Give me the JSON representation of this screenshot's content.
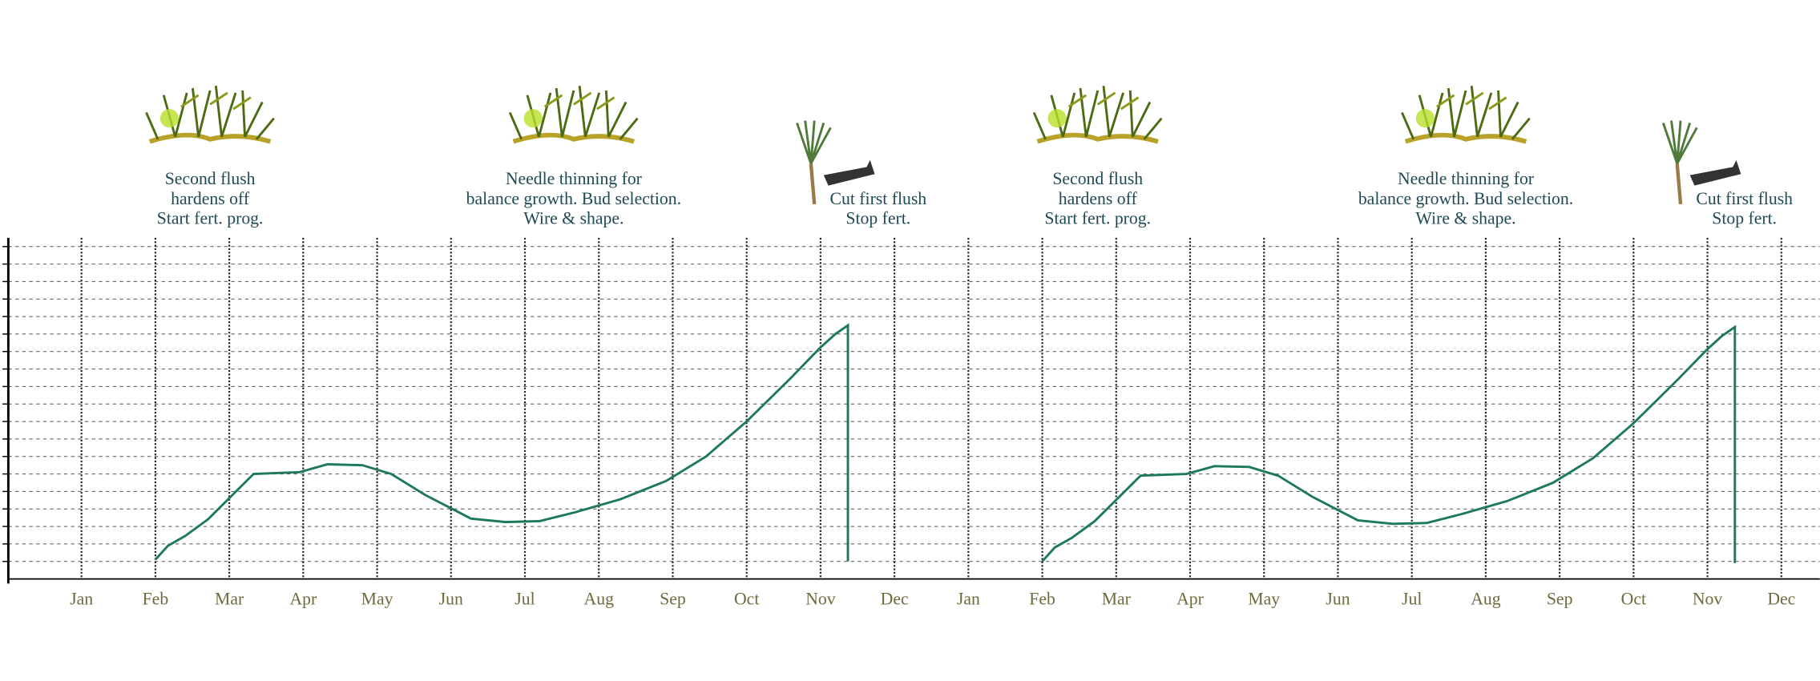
{
  "chart_data": {
    "type": "line",
    "x": [
      1,
      1.17,
      1.4,
      1.71,
      2.02,
      2.33,
      2.95,
      3.33,
      3.8,
      4.19,
      4.65,
      5.27,
      5.74,
      6.2,
      6.67,
      7.29,
      7.91,
      8.45,
      9.0,
      9.6,
      9.99,
      10.2,
      10.37,
      10.37,
      null,
      13,
      13.17,
      13.4,
      13.71,
      14.02,
      14.33,
      14.95,
      15.33,
      15.8,
      16.19,
      16.65,
      17.27,
      17.74,
      18.2,
      18.67,
      19.29,
      19.91,
      20.45,
      21.0,
      21.6,
      21.99,
      22.2,
      22.37,
      22.37
    ],
    "values": [
      1.1,
      1.9,
      2.45,
      3.4,
      4.7,
      6.0,
      6.1,
      6.55,
      6.5,
      6.0,
      4.8,
      3.45,
      3.25,
      3.3,
      3.8,
      4.55,
      5.6,
      7.0,
      9.0,
      11.5,
      13.2,
      14.0,
      14.5,
      1.0,
      null,
      1.0,
      1.8,
      2.35,
      3.3,
      4.6,
      5.9,
      6.0,
      6.45,
      6.4,
      5.9,
      4.7,
      3.35,
      3.15,
      3.2,
      3.7,
      4.45,
      5.5,
      6.9,
      8.9,
      11.4,
      13.1,
      13.9,
      14.4,
      0.9
    ],
    "color": "#1e7a55",
    "xlim": [
      -0.99,
      23.52
    ],
    "ylim": [
      0,
      19.5
    ],
    "xticks": [
      {
        "value": 0,
        "label": "Jan"
      },
      {
        "value": 1,
        "label": "Feb"
      },
      {
        "value": 2,
        "label": "Mar"
      },
      {
        "value": 3,
        "label": "Apr"
      },
      {
        "value": 4,
        "label": "May"
      },
      {
        "value": 5,
        "label": "Jun"
      },
      {
        "value": 6,
        "label": "Jul"
      },
      {
        "value": 7,
        "label": "Aug"
      },
      {
        "value": 8,
        "label": "Sep"
      },
      {
        "value": 9,
        "label": "Oct"
      },
      {
        "value": 10,
        "label": "Nov"
      },
      {
        "value": 11,
        "label": "Dec"
      },
      {
        "value": 12,
        "label": "Jan"
      },
      {
        "value": 13,
        "label": "Feb"
      },
      {
        "value": 14,
        "label": "Mar"
      },
      {
        "value": 15,
        "label": "Apr"
      },
      {
        "value": 16,
        "label": "May"
      },
      {
        "value": 17,
        "label": "Jun"
      },
      {
        "value": 18,
        "label": "Jul"
      },
      {
        "value": 19,
        "label": "Aug"
      },
      {
        "value": 20,
        "label": "Sep"
      },
      {
        "value": 21,
        "label": "Oct"
      },
      {
        "value": 22,
        "label": "Nov"
      },
      {
        "value": 23,
        "label": "Dec"
      }
    ],
    "yticks": [
      1,
      2,
      3,
      4,
      5,
      6,
      7,
      8,
      9,
      10,
      11,
      12,
      13,
      14,
      15,
      16,
      17,
      18,
      19
    ],
    "grid": true,
    "annotations": [
      {
        "x": 1.74,
        "lines": [
          "Second flush",
          "hardens off",
          "Start fert. prog."
        ]
      },
      {
        "x": 6.66,
        "lines": [
          "Needle thinning for",
          "balance growth.  Bud selection.",
          "Wire & shape."
        ]
      },
      {
        "x": 10.78,
        "lines": [
          "Cut first flush",
          "Stop fert."
        ]
      },
      {
        "x": 13.75,
        "lines": [
          "Second flush",
          "hardens off",
          "Start fert. prog."
        ]
      },
      {
        "x": 18.73,
        "lines": [
          "Needle thinning for",
          "balance growth.  Bud selection.",
          "Wire & shape."
        ]
      },
      {
        "x": 22.5,
        "lines": [
          "Cut first flush",
          "Stop fert."
        ]
      }
    ]
  }
}
